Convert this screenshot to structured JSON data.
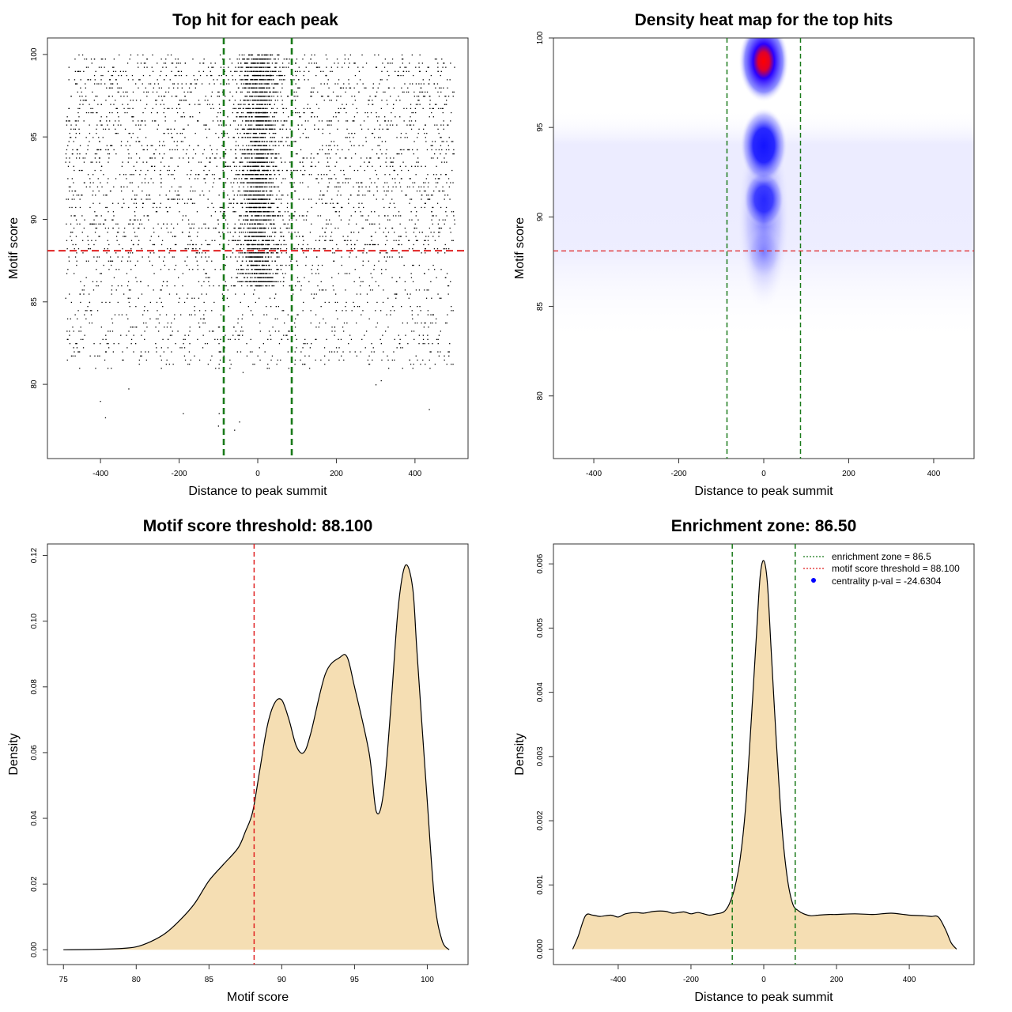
{
  "colors": {
    "threshold": "#e02020",
    "zone": "#1a7a1a",
    "fill": "#f5deb3",
    "density_low": "#ffffff",
    "density_mid": "#0000ff",
    "density_high": "#ff0000",
    "legend_point": "#0000ff"
  },
  "chart_data": [
    {
      "id": "scatter",
      "type": "scatter",
      "title": "Top hit for each peak",
      "xlabel": "Distance to peak summit",
      "ylabel": "Motif score",
      "xlim": [
        -535,
        535
      ],
      "ylim": [
        75.5,
        101
      ],
      "xticks": [
        -400,
        -200,
        0,
        200,
        400
      ],
      "yticks": [
        80,
        85,
        90,
        95,
        100
      ],
      "hlines": [
        88.1
      ],
      "vlines": [
        -86.5,
        86.5
      ],
      "point_clusters": [
        {
          "x_range": [
            -490,
            500
          ],
          "score_range": [
            88.1,
            100
          ],
          "count": 2600
        },
        {
          "x_range": [
            -490,
            500
          ],
          "score_range": [
            81,
            88.1
          ],
          "count": 900
        },
        {
          "x_center": 0,
          "x_sd": 25,
          "score_range": [
            86,
            100
          ],
          "count": 2400
        },
        {
          "x_range": [
            -490,
            500
          ],
          "score_range": [
            76.5,
            81
          ],
          "count": 12
        }
      ]
    },
    {
      "id": "heatmap",
      "type": "heatmap",
      "title": "Density heat map for the top hits",
      "xlabel": "Distance to peak summit",
      "ylabel": "Motif score",
      "xlim": [
        -495,
        495
      ],
      "ylim": [
        76.5,
        100
      ],
      "xticks": [
        -400,
        -200,
        0,
        200,
        400
      ],
      "yticks": [
        80,
        85,
        90,
        95,
        100
      ],
      "hlines": [
        88.1
      ],
      "vlines": [
        -86.5,
        86.5
      ],
      "hotspots": [
        {
          "x": 0,
          "y": 98.7,
          "weight": 1.0
        },
        {
          "x": 0,
          "y": 94.0,
          "weight": 0.82
        },
        {
          "x": 0,
          "y": 91.0,
          "weight": 0.45
        },
        {
          "x": 0,
          "y": 88.0,
          "weight": 0.28
        }
      ]
    },
    {
      "id": "score-density",
      "type": "area",
      "title": "Motif score threshold: 88.100",
      "xlabel": "Motif score",
      "ylabel": "Density",
      "xlim": [
        73.9,
        102.8
      ],
      "ylim": [
        -0.0045,
        0.1235
      ],
      "xticks": [
        75,
        80,
        85,
        90,
        95,
        100
      ],
      "yticks": [
        0.0,
        0.02,
        0.04,
        0.06,
        0.08,
        0.1,
        0.12
      ],
      "ytick_labels": [
        "0.00",
        "0.02",
        "0.04",
        "0.06",
        "0.08",
        "0.10",
        "0.12"
      ],
      "vlines": [
        88.1
      ],
      "x": [
        75,
        77,
        79,
        80,
        81,
        82,
        83,
        84,
        85,
        86,
        87,
        87.5,
        88,
        88.5,
        89,
        89.5,
        90,
        90.5,
        91,
        91.5,
        92,
        93,
        94,
        94.5,
        95,
        96,
        96.5,
        97,
        97.5,
        98,
        98.5,
        99,
        99.3,
        100,
        100.5,
        101,
        101.5
      ],
      "values": [
        0.0,
        0.0001,
        0.0004,
        0.0009,
        0.0025,
        0.005,
        0.009,
        0.014,
        0.021,
        0.026,
        0.031,
        0.036,
        0.042,
        0.055,
        0.068,
        0.075,
        0.076,
        0.07,
        0.062,
        0.06,
        0.066,
        0.084,
        0.089,
        0.089,
        0.08,
        0.06,
        0.042,
        0.048,
        0.074,
        0.104,
        0.117,
        0.11,
        0.09,
        0.045,
        0.015,
        0.003,
        0.0
      ]
    },
    {
      "id": "distance-density",
      "type": "area",
      "title": "Enrichment zone: 86.50",
      "xlabel": "Distance to peak summit",
      "ylabel": "Density",
      "xlim": [
        -578,
        578
      ],
      "ylim": [
        -0.00024,
        0.00631
      ],
      "xticks": [
        -400,
        -200,
        0,
        200,
        400
      ],
      "yticks": [
        0.0,
        0.001,
        0.002,
        0.003,
        0.004,
        0.005,
        0.006
      ],
      "ytick_labels": [
        "0.000",
        "0.001",
        "0.002",
        "0.003",
        "0.004",
        "0.005",
        "0.006"
      ],
      "vlines": [
        -86.5,
        86.5
      ],
      "x": [
        -525,
        -510,
        -490,
        -470,
        -450,
        -420,
        -400,
        -380,
        -350,
        -330,
        -300,
        -270,
        -250,
        -220,
        -200,
        -180,
        -150,
        -130,
        -110,
        -95,
        -80,
        -65,
        -50,
        -35,
        -20,
        -10,
        0,
        10,
        20,
        35,
        50,
        65,
        80,
        95,
        110,
        130,
        150,
        180,
        200,
        250,
        300,
        350,
        400,
        440,
        460,
        480,
        500,
        515,
        530
      ],
      "values": [
        0.0,
        0.0002,
        0.00052,
        0.00053,
        0.00051,
        0.00053,
        0.0005,
        0.00055,
        0.00057,
        0.00056,
        0.00059,
        0.00059,
        0.00056,
        0.00058,
        0.00055,
        0.00057,
        0.00053,
        0.00055,
        0.00058,
        0.0007,
        0.00095,
        0.0014,
        0.0022,
        0.0035,
        0.0049,
        0.0058,
        0.00605,
        0.0057,
        0.0047,
        0.0032,
        0.0019,
        0.0011,
        0.0007,
        0.0006,
        0.00055,
        0.00052,
        0.00053,
        0.00054,
        0.00054,
        0.00055,
        0.00054,
        0.00056,
        0.00053,
        0.00052,
        0.00051,
        0.0005,
        0.0003,
        0.0001,
        0.0
      ],
      "legend": [
        {
          "label": "enrichment zone = 86.5",
          "style": "dotted-green"
        },
        {
          "label": "motif score threshold = 88.100",
          "style": "dotted-red"
        },
        {
          "label": "centrality p-val = -24.6304",
          "style": "blue-point"
        }
      ]
    }
  ]
}
